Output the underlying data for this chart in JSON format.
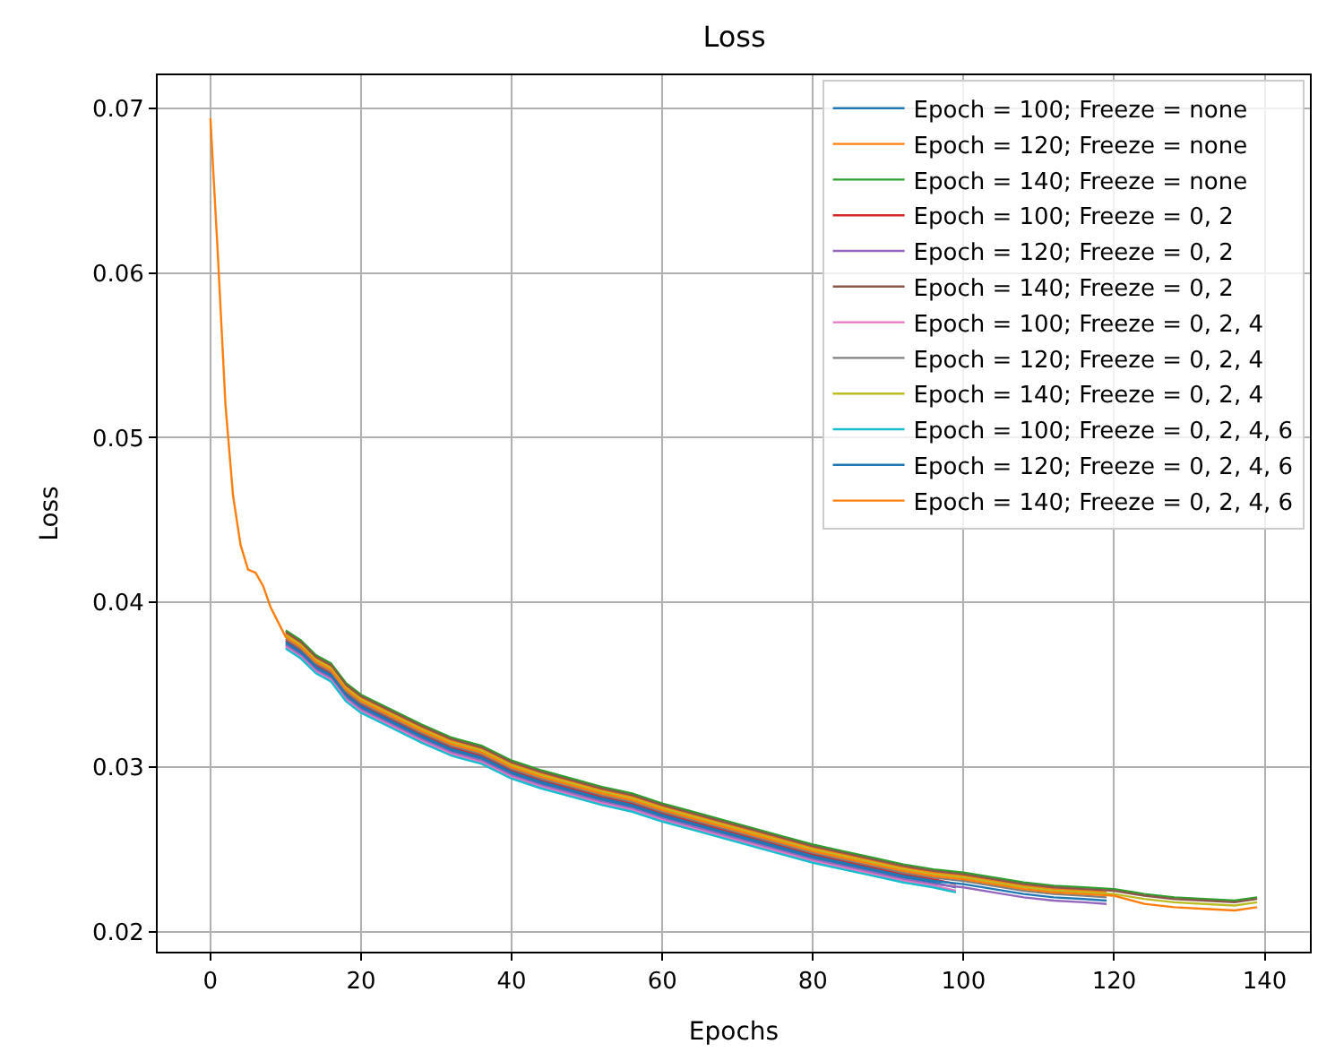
{
  "chart_data": {
    "type": "line",
    "title": "Loss",
    "xlabel": "Epochs",
    "ylabel": "Loss",
    "xlim": [
      -7,
      146
    ],
    "xticks": [
      0,
      20,
      40,
      60,
      80,
      100,
      120,
      140
    ],
    "ylim": [
      0.0188,
      0.072
    ],
    "yticks": [
      0.02,
      0.03,
      0.04,
      0.05,
      0.06,
      0.07
    ],
    "grid": true,
    "legend": "top right",
    "marker": "none",
    "line_style": "solid",
    "series": [
      {
        "name": "Epoch = 100; Freeze = none",
        "color": "#1f77b4",
        "x": [
          10,
          12,
          14,
          16,
          18,
          20,
          24,
          28,
          32,
          36,
          40,
          44,
          48,
          52,
          56,
          60,
          64,
          68,
          72,
          76,
          80,
          84,
          88,
          92,
          96,
          99
        ],
        "values": [
          0.0375,
          0.0369,
          0.036,
          0.0355,
          0.0343,
          0.0336,
          0.0327,
          0.0318,
          0.031,
          0.0305,
          0.0296,
          0.029,
          0.0285,
          0.028,
          0.0276,
          0.027,
          0.0265,
          0.026,
          0.0255,
          0.025,
          0.0245,
          0.0241,
          0.0237,
          0.0233,
          0.023,
          0.0227
        ]
      },
      {
        "name": "Epoch = 120; Freeze = none",
        "color": "#ff7f0e",
        "x": [
          10,
          12,
          14,
          16,
          18,
          20,
          24,
          28,
          32,
          36,
          40,
          44,
          48,
          52,
          56,
          60,
          64,
          68,
          72,
          76,
          80,
          84,
          88,
          92,
          96,
          100,
          104,
          108,
          112,
          116,
          119
        ],
        "values": [
          0.0381,
          0.0375,
          0.0366,
          0.0361,
          0.0349,
          0.0342,
          0.0333,
          0.0324,
          0.0316,
          0.0311,
          0.0302,
          0.0296,
          0.0291,
          0.0286,
          0.0282,
          0.0276,
          0.0271,
          0.0266,
          0.0261,
          0.0256,
          0.0251,
          0.0247,
          0.0243,
          0.0239,
          0.0236,
          0.0234,
          0.0231,
          0.0228,
          0.0226,
          0.0225,
          0.0224
        ]
      },
      {
        "name": "Epoch = 140; Freeze = none",
        "color": "#2ca02c",
        "x": [
          10,
          12,
          14,
          16,
          18,
          20,
          24,
          28,
          32,
          36,
          40,
          44,
          48,
          52,
          56,
          60,
          64,
          68,
          72,
          76,
          80,
          84,
          88,
          92,
          96,
          100,
          104,
          108,
          112,
          116,
          120,
          124,
          128,
          132,
          136,
          139
        ],
        "values": [
          0.0383,
          0.0377,
          0.0368,
          0.0363,
          0.0351,
          0.0344,
          0.0335,
          0.0326,
          0.0318,
          0.0313,
          0.0304,
          0.0298,
          0.0293,
          0.0288,
          0.0284,
          0.0278,
          0.0273,
          0.0268,
          0.0263,
          0.0258,
          0.0253,
          0.0249,
          0.0245,
          0.0241,
          0.0238,
          0.0236,
          0.0233,
          0.023,
          0.0228,
          0.0227,
          0.0226,
          0.0223,
          0.0221,
          0.022,
          0.0219,
          0.0221
        ]
      },
      {
        "name": "Epoch = 100; Freeze = 0, 2",
        "color": "#d62728",
        "x": [
          10,
          12,
          14,
          16,
          18,
          20,
          24,
          28,
          32,
          36,
          40,
          44,
          48,
          52,
          56,
          60,
          64,
          68,
          72,
          76,
          80,
          84,
          88,
          92,
          96,
          99
        ],
        "values": [
          0.0377,
          0.0371,
          0.0362,
          0.0357,
          0.0345,
          0.0338,
          0.0329,
          0.032,
          0.0312,
          0.0307,
          0.0298,
          0.0292,
          0.0287,
          0.0282,
          0.0278,
          0.0272,
          0.0267,
          0.0262,
          0.0257,
          0.0252,
          0.0247,
          0.0243,
          0.0239,
          0.0235,
          0.0232,
          0.0229
        ]
      },
      {
        "name": "Epoch = 120; Freeze = 0, 2",
        "color": "#9467bd",
        "x": [
          10,
          12,
          14,
          16,
          18,
          20,
          24,
          28,
          32,
          36,
          40,
          44,
          48,
          52,
          56,
          60,
          64,
          68,
          72,
          76,
          80,
          84,
          88,
          92,
          96,
          100,
          104,
          108,
          112,
          116,
          119
        ],
        "values": [
          0.0374,
          0.0368,
          0.0359,
          0.0354,
          0.0342,
          0.0335,
          0.0326,
          0.0317,
          0.0309,
          0.0304,
          0.0295,
          0.0289,
          0.0284,
          0.0279,
          0.0275,
          0.0269,
          0.0264,
          0.0259,
          0.0254,
          0.0249,
          0.0244,
          0.024,
          0.0236,
          0.0232,
          0.0229,
          0.0227,
          0.0224,
          0.0221,
          0.0219,
          0.0218,
          0.0217
        ]
      },
      {
        "name": "Epoch = 140; Freeze = 0, 2",
        "color": "#8c564b",
        "x": [
          10,
          12,
          14,
          16,
          18,
          20,
          24,
          28,
          32,
          36,
          40,
          44,
          48,
          52,
          56,
          60,
          64,
          68,
          72,
          76,
          80,
          84,
          88,
          92,
          96,
          100,
          104,
          108,
          112,
          116,
          120,
          124,
          128,
          132,
          136,
          139
        ],
        "values": [
          0.0382,
          0.0376,
          0.0367,
          0.0362,
          0.035,
          0.0343,
          0.0334,
          0.0325,
          0.0317,
          0.0312,
          0.0303,
          0.0297,
          0.0292,
          0.0287,
          0.0283,
          0.0277,
          0.0272,
          0.0267,
          0.0262,
          0.0257,
          0.0252,
          0.0248,
          0.0244,
          0.024,
          0.0237,
          0.0235,
          0.0232,
          0.0229,
          0.0227,
          0.0226,
          0.0225,
          0.0222,
          0.022,
          0.0219,
          0.0218,
          0.022
        ]
      },
      {
        "name": "Epoch = 100; Freeze = 0, 2, 4",
        "color": "#e377c2",
        "x": [
          10,
          12,
          14,
          16,
          18,
          20,
          24,
          28,
          32,
          36,
          40,
          44,
          48,
          52,
          56,
          60,
          64,
          68,
          72,
          76,
          80,
          84,
          88,
          92,
          96,
          99
        ],
        "values": [
          0.0373,
          0.0367,
          0.0358,
          0.0353,
          0.0341,
          0.0334,
          0.0325,
          0.0316,
          0.0308,
          0.0303,
          0.0294,
          0.0288,
          0.0283,
          0.0278,
          0.0274,
          0.0268,
          0.0263,
          0.0258,
          0.0253,
          0.0248,
          0.0243,
          0.0239,
          0.0235,
          0.0231,
          0.0228,
          0.0225
        ]
      },
      {
        "name": "Epoch = 120; Freeze = 0, 2, 4",
        "color": "#7f7f7f",
        "x": [
          10,
          12,
          14,
          16,
          18,
          20,
          24,
          28,
          32,
          36,
          40,
          44,
          48,
          52,
          56,
          60,
          64,
          68,
          72,
          76,
          80,
          84,
          88,
          92,
          96,
          100,
          104,
          108,
          112,
          116,
          119
        ],
        "values": [
          0.0378,
          0.0372,
          0.0363,
          0.0358,
          0.0346,
          0.0339,
          0.033,
          0.0321,
          0.0313,
          0.0308,
          0.0299,
          0.0293,
          0.0288,
          0.0283,
          0.0279,
          0.0273,
          0.0268,
          0.0263,
          0.0258,
          0.0253,
          0.0248,
          0.0244,
          0.024,
          0.0236,
          0.0233,
          0.0231,
          0.0228,
          0.0225,
          0.0223,
          0.0222,
          0.0221
        ]
      },
      {
        "name": "Epoch = 140; Freeze = 0, 2, 4",
        "color": "#bcbd22",
        "x": [
          10,
          12,
          14,
          16,
          18,
          20,
          24,
          28,
          32,
          36,
          40,
          44,
          48,
          52,
          56,
          60,
          64,
          68,
          72,
          76,
          80,
          84,
          88,
          92,
          96,
          100,
          104,
          108,
          112,
          116,
          120,
          124,
          128,
          132,
          136,
          139
        ],
        "values": [
          0.038,
          0.0374,
          0.0365,
          0.036,
          0.0348,
          0.0341,
          0.0332,
          0.0323,
          0.0315,
          0.031,
          0.0301,
          0.0295,
          0.029,
          0.0285,
          0.0281,
          0.0275,
          0.027,
          0.0265,
          0.026,
          0.0255,
          0.025,
          0.0246,
          0.0242,
          0.0238,
          0.0235,
          0.0233,
          0.023,
          0.0227,
          0.0225,
          0.0224,
          0.0223,
          0.022,
          0.0218,
          0.0217,
          0.0216,
          0.0218
        ]
      },
      {
        "name": "Epoch = 100; Freeze = 0, 2, 4, 6",
        "color": "#17becf",
        "x": [
          10,
          12,
          14,
          16,
          18,
          20,
          24,
          28,
          32,
          36,
          40,
          44,
          48,
          52,
          56,
          60,
          64,
          68,
          72,
          76,
          80,
          84,
          88,
          92,
          96,
          99
        ],
        "values": [
          0.0372,
          0.0366,
          0.0357,
          0.0352,
          0.034,
          0.0333,
          0.0324,
          0.0315,
          0.0307,
          0.0302,
          0.0293,
          0.0287,
          0.0282,
          0.0277,
          0.0273,
          0.0267,
          0.0262,
          0.0257,
          0.0252,
          0.0247,
          0.0242,
          0.0238,
          0.0234,
          0.023,
          0.0227,
          0.0224
        ]
      },
      {
        "name": "Epoch = 120; Freeze = 0, 2, 4, 6",
        "color": "#1f77b4",
        "x": [
          10,
          12,
          14,
          16,
          18,
          20,
          24,
          28,
          32,
          36,
          40,
          44,
          48,
          52,
          56,
          60,
          64,
          68,
          72,
          76,
          80,
          84,
          88,
          92,
          96,
          100,
          104,
          108,
          112,
          116,
          119
        ],
        "values": [
          0.0376,
          0.037,
          0.0361,
          0.0356,
          0.0344,
          0.0337,
          0.0328,
          0.0319,
          0.0311,
          0.0306,
          0.0297,
          0.0291,
          0.0286,
          0.0281,
          0.0277,
          0.0271,
          0.0266,
          0.0261,
          0.0256,
          0.0251,
          0.0246,
          0.0242,
          0.0238,
          0.0234,
          0.0231,
          0.0229,
          0.0226,
          0.0223,
          0.0221,
          0.022,
          0.0219
        ]
      },
      {
        "name": "Epoch = 140; Freeze = 0, 2, 4, 6",
        "color": "#ff7f0e",
        "x": [
          0,
          1,
          2,
          3,
          4,
          5,
          6,
          7,
          8,
          9,
          10,
          12,
          14,
          16,
          18,
          20,
          24,
          28,
          32,
          36,
          40,
          44,
          48,
          52,
          56,
          60,
          64,
          68,
          72,
          76,
          80,
          84,
          88,
          92,
          96,
          100,
          104,
          108,
          112,
          116,
          120,
          124,
          128,
          132,
          136,
          139
        ],
        "values": [
          0.0694,
          0.061,
          0.052,
          0.0465,
          0.0435,
          0.042,
          0.0418,
          0.041,
          0.0397,
          0.0388,
          0.0379,
          0.0373,
          0.0364,
          0.0359,
          0.0347,
          0.034,
          0.0331,
          0.0322,
          0.0314,
          0.0309,
          0.03,
          0.0294,
          0.0289,
          0.0284,
          0.028,
          0.0274,
          0.0269,
          0.0264,
          0.0259,
          0.0254,
          0.0249,
          0.0245,
          0.0241,
          0.0237,
          0.0234,
          0.0232,
          0.0229,
          0.0226,
          0.0224,
          0.0223,
          0.0222,
          0.0217,
          0.0215,
          0.0214,
          0.0213,
          0.0215
        ]
      }
    ]
  }
}
